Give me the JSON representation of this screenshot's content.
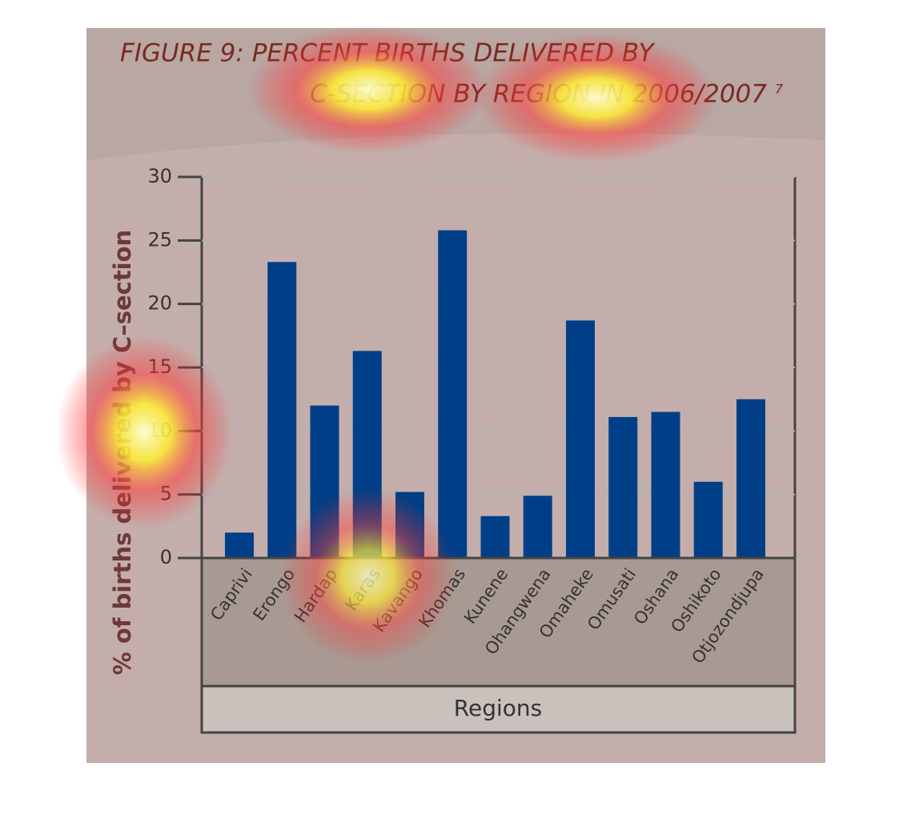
{
  "chart_data": {
    "type": "bar",
    "title": [
      "FIGURE 9: PERCENT BIRTHS DELIVERED BY",
      "C-SECTION BY REGION IN 2006/2007"
    ],
    "title_note": "7",
    "y_label": "% of births delivered by C–section",
    "x_label": "Regions",
    "categories": [
      "Caprivi",
      "Erongo",
      "Hardap",
      "Karas",
      "Kavango",
      "Khomas",
      "Kunene",
      "Ohangwena",
      "Omaheke",
      "Omusati",
      "Oshana",
      "Oshikoto",
      "Otjozondjupa"
    ],
    "values": [
      2.0,
      23.3,
      12.0,
      16.3,
      5.2,
      25.8,
      3.3,
      4.9,
      18.7,
      11.1,
      11.5,
      6.0,
      12.5
    ],
    "color": "#003f87",
    "ylim": [
      0,
      30
    ],
    "yticks": [
      0,
      5,
      10,
      15,
      20,
      25,
      30
    ],
    "grid": true
  }
}
